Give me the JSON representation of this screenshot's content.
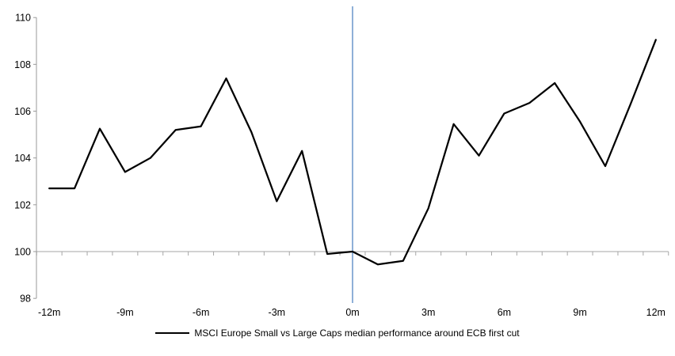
{
  "chart_data": {
    "type": "line",
    "title": "",
    "xlabel": "",
    "ylabel": "",
    "x_months": [
      -12,
      -11,
      -10,
      -9,
      -8,
      -7,
      -6,
      -5,
      -4,
      -3,
      -2,
      -1,
      0,
      1,
      2,
      3,
      4,
      5,
      6,
      7,
      8,
      9,
      10,
      11,
      12
    ],
    "series": [
      {
        "name": "MSCI Europe Small vs Large Caps median performance around ECB first cut",
        "values": [
          102.7,
          102.7,
          105.25,
          103.4,
          104.0,
          105.2,
          105.35,
          107.4,
          105.1,
          102.15,
          104.3,
          99.9,
          100.0,
          99.45,
          99.6,
          101.85,
          105.45,
          104.1,
          105.9,
          106.35,
          107.2,
          105.55,
          103.65,
          106.3,
          109.05
        ]
      }
    ],
    "ylim": [
      98,
      110
    ],
    "yticks": [
      98,
      100,
      102,
      104,
      106,
      108,
      110
    ],
    "xtick_months": [
      -12,
      -9,
      -6,
      -3,
      0,
      3,
      6,
      9,
      12
    ],
    "xtick_labels": [
      "-12m",
      "-9m",
      "-6m",
      "-3m",
      "0m",
      "3m",
      "6m",
      "9m",
      "12m"
    ],
    "baseline_value": 100,
    "event_line_month": 0,
    "grid": "baseline-only",
    "legend": {
      "position": "bottom",
      "label": "MSCI Europe Small vs Large Caps median performance around ECB first cut"
    },
    "colors": {
      "series": "#000000",
      "event_line": "#7ba3d2",
      "axis": "#999999",
      "baseline": "#a6a6a6",
      "text": "#000000"
    }
  }
}
